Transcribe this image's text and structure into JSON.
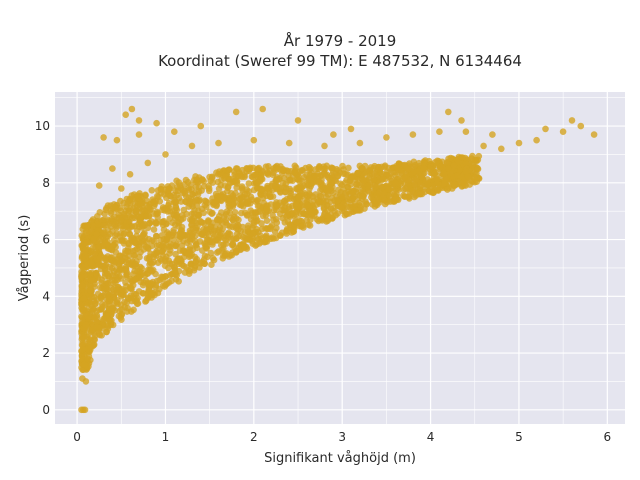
{
  "chart_data": {
    "type": "scatter",
    "title_line1": "År 1979 - 2019",
    "title_line2": "Koordinat (Sweref 99 TM): E 487532, N 6134464",
    "xlabel": "Signifikant våghöjd (m)",
    "ylabel": "Vågperiod (s)",
    "xlim": [
      -0.25,
      6.2
    ],
    "ylim": [
      -0.5,
      11.2
    ],
    "xticks": [
      0,
      1,
      2,
      3,
      4,
      5,
      6
    ],
    "yticks": [
      0,
      2,
      4,
      6,
      8,
      10
    ],
    "grid": true,
    "marker_color": "#d4a422",
    "background_color": "#e5e5ef",
    "series": [
      {
        "values": [
          [
            0.05,
            0.0
          ],
          [
            0.07,
            0.0
          ],
          [
            0.09,
            0.0
          ],
          [
            0.06,
            1.1
          ],
          [
            0.1,
            1.0
          ],
          [
            0.08,
            1.6
          ],
          [
            0.12,
            1.8
          ],
          [
            0.15,
            2.2
          ],
          [
            0.2,
            2.6
          ],
          [
            0.25,
            2.9
          ],
          [
            0.3,
            3.2
          ],
          [
            0.4,
            3.6
          ],
          [
            0.5,
            4.0
          ],
          [
            0.6,
            4.3
          ],
          [
            0.8,
            4.8
          ],
          [
            1.0,
            5.3
          ],
          [
            1.2,
            5.6
          ],
          [
            1.5,
            6.0
          ],
          [
            1.8,
            6.4
          ],
          [
            2.0,
            6.6
          ],
          [
            2.3,
            6.9
          ],
          [
            2.6,
            7.2
          ],
          [
            3.0,
            7.5
          ],
          [
            3.3,
            7.7
          ],
          [
            3.6,
            8.0
          ],
          [
            3.9,
            8.2
          ],
          [
            4.2,
            8.5
          ],
          [
            4.5,
            8.8
          ],
          [
            4.8,
            9.2
          ],
          [
            5.0,
            9.4
          ],
          [
            0.1,
            3.0
          ],
          [
            0.15,
            4.2
          ],
          [
            0.2,
            5.5
          ],
          [
            0.3,
            6.5
          ],
          [
            0.35,
            7.2
          ],
          [
            0.5,
            7.8
          ],
          [
            0.6,
            8.3
          ],
          [
            0.8,
            8.7
          ],
          [
            1.0,
            9.0
          ],
          [
            1.3,
            9.3
          ],
          [
            1.6,
            9.4
          ],
          [
            2.0,
            9.5
          ],
          [
            2.4,
            9.4
          ],
          [
            2.8,
            9.3
          ],
          [
            3.2,
            9.4
          ],
          [
            3.5,
            9.6
          ],
          [
            3.8,
            9.7
          ],
          [
            4.1,
            9.8
          ],
          [
            4.4,
            9.8
          ],
          [
            4.7,
            9.7
          ],
          [
            0.55,
            10.4
          ],
          [
            0.62,
            10.6
          ],
          [
            0.7,
            10.2
          ],
          [
            0.9,
            10.1
          ],
          [
            1.4,
            10.0
          ],
          [
            1.8,
            10.5
          ],
          [
            2.1,
            10.6
          ],
          [
            2.5,
            10.2
          ],
          [
            4.2,
            10.5
          ],
          [
            4.35,
            10.2
          ],
          [
            5.2,
            9.5
          ],
          [
            5.5,
            9.8
          ],
          [
            5.6,
            10.2
          ],
          [
            5.7,
            10.0
          ],
          [
            5.85,
            9.7
          ],
          [
            5.3,
            9.9
          ],
          [
            0.3,
            9.6
          ],
          [
            0.45,
            9.5
          ],
          [
            0.4,
            8.5
          ],
          [
            0.25,
            7.9
          ],
          [
            0.7,
            9.7
          ],
          [
            1.1,
            9.8
          ],
          [
            2.9,
            9.7
          ],
          [
            3.1,
            9.9
          ],
          [
            4.6,
            9.3
          ]
        ]
      }
    ]
  }
}
